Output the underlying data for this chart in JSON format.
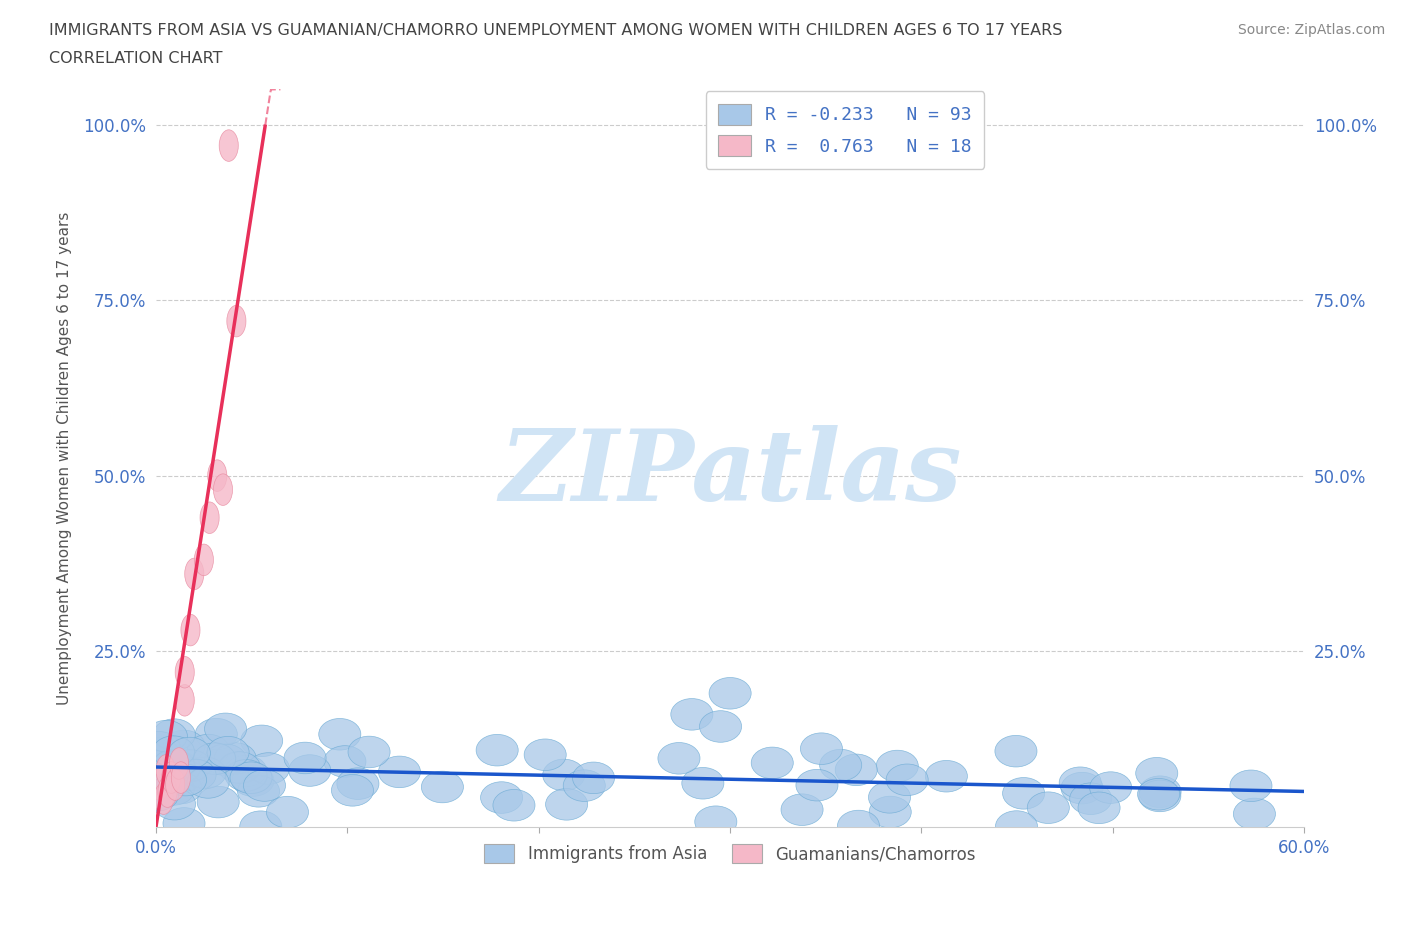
{
  "title_line1": "IMMIGRANTS FROM ASIA VS GUAMANIAN/CHAMORRO UNEMPLOYMENT AMONG WOMEN WITH CHILDREN AGES 6 TO 17 YEARS",
  "title_line2": "CORRELATION CHART",
  "source_text": "Source: ZipAtlas.com",
  "ylabel": "Unemployment Among Women with Children Ages 6 to 17 years",
  "xlim": [
    0.0,
    0.6
  ],
  "ylim": [
    0.0,
    1.05
  ],
  "xtick_labels": [
    "0.0%",
    "",
    "",
    "",
    "",
    "",
    "60.0%"
  ],
  "xtick_values": [
    0.0,
    0.1,
    0.2,
    0.3,
    0.4,
    0.5,
    0.6
  ],
  "ytick_labels": [
    "25.0%",
    "50.0%",
    "75.0%",
    "100.0%"
  ],
  "ytick_values": [
    0.25,
    0.5,
    0.75,
    1.0
  ],
  "blue_color": "#a8c8e8",
  "blue_edge_color": "#6aaad4",
  "blue_line_color": "#1a56cc",
  "pink_color": "#f5b8c8",
  "pink_edge_color": "#e88aa0",
  "pink_line_color": "#e8305a",
  "watermark_text": "ZIPatlas",
  "watermark_color": "#d0e4f5",
  "legend_r1": "R = -0.233",
  "legend_n1": "N = 93",
  "legend_r2": "R =  0.763",
  "legend_n2": "N = 18",
  "grid_color": "#cccccc",
  "background_color": "#ffffff",
  "title_color": "#444444",
  "axis_label_color": "#555555",
  "tick_label_color": "#4472c4",
  "blue_trend_intercept": 0.085,
  "blue_trend_slope": -0.058,
  "pink_trend_intercept": -0.02,
  "pink_trend_slope": 18.0
}
